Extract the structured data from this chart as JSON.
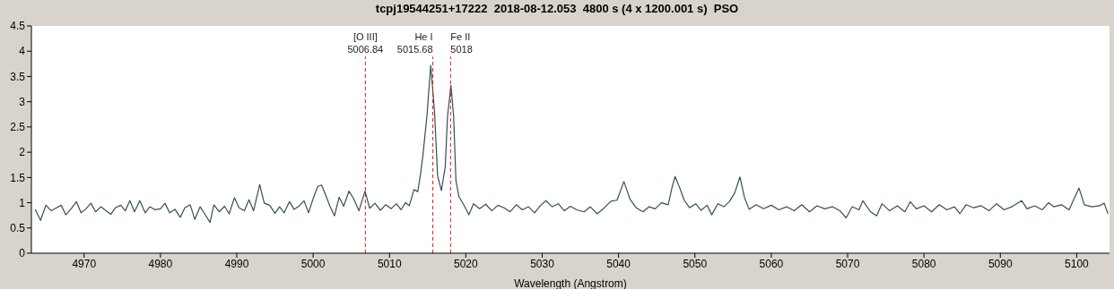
{
  "chart_data": {
    "type": "line",
    "title": "tcpj19544251+17222  2018-08-12.053  4800 s (4 x 1200.001 s)  PSO",
    "xlabel": "Wavelength (Angstrom)",
    "xlim": [
      4963.1,
      5104.3
    ],
    "xticks": [
      4970,
      4980,
      4990,
      5000,
      5010,
      5020,
      5030,
      5040,
      5050,
      5060,
      5070,
      5080,
      5090,
      5100
    ],
    "ylim": [
      0,
      4.5
    ],
    "yticks": [
      0,
      0.5,
      1,
      1.5,
      2,
      2.5,
      3,
      3.5,
      4,
      4.5
    ],
    "grid": false,
    "legend": false,
    "marker": "none",
    "line_style": "solid",
    "ref_lines": [
      {
        "axis": "x",
        "value": 5006.84,
        "label": "[O III]\n5006.84",
        "color": "#e0191c",
        "line_style": "dashed"
      },
      {
        "axis": "x",
        "value": 5015.68,
        "label": "He I\n5015.68",
        "color": "#e0191c",
        "line_style": "dashed"
      },
      {
        "axis": "x",
        "value": 5018,
        "label": "Fe II\n5018",
        "color": "#e0191c",
        "line_style": "dashed"
      }
    ],
    "series": [
      {
        "color": "#34504f",
        "x": [
          4963.6,
          4964.3,
          4965.0,
          4965.7,
          4966.4,
          4967.0,
          4967.6,
          4968.3,
          4969.0,
          4969.6,
          4970.2,
          4970.9,
          4971.5,
          4972.2,
          4972.8,
          4973.5,
          4974.1,
          4974.8,
          4975.4,
          4976.0,
          4976.6,
          4977.3,
          4978.0,
          4978.6,
          4979.3,
          4980.0,
          4980.6,
          4981.2,
          4981.9,
          4982.6,
          4983.2,
          4983.9,
          4984.5,
          4985.2,
          4985.8,
          4986.5,
          4987.0,
          4987.7,
          4988.4,
          4989.0,
          4989.7,
          4990.3,
          4991.0,
          4991.6,
          4992.2,
          4993.0,
          4993.6,
          4994.3,
          4995.0,
          4995.6,
          4996.2,
          4996.9,
          4997.5,
          4998.2,
          4998.8,
          4999.4,
          5000.0,
          5000.6,
          5001.1,
          5001.6,
          5002.2,
          5002.8,
          5003.4,
          5004.0,
          5004.7,
          5005.3,
          5006.0,
          5006.8,
          5007.4,
          5008.1,
          5008.8,
          5009.5,
          5010.2,
          5010.9,
          5011.5,
          5012.1,
          5012.6,
          5013.2,
          5013.7,
          5014.1,
          5014.4,
          5014.9,
          5015.4,
          5015.9,
          5016.3,
          5016.8,
          5017.3,
          5017.6,
          5018.05,
          5018.4,
          5018.7,
          5019.1,
          5019.8,
          5020.4,
          5021.0,
          5021.8,
          5022.6,
          5023.4,
          5024.2,
          5025.0,
          5025.8,
          5026.6,
          5027.4,
          5028.2,
          5029.0,
          5029.8,
          5030.5,
          5031.3,
          5032.1,
          5032.9,
          5033.7,
          5034.5,
          5035.5,
          5036.3,
          5037.2,
          5038.0,
          5039.0,
          5039.8,
          5040.7,
          5041.5,
          5042.3,
          5043.2,
          5044.0,
          5044.8,
          5045.6,
          5046.5,
          5047.0,
          5047.4,
          5048.0,
          5048.6,
          5049.3,
          5050.1,
          5050.8,
          5051.6,
          5052.2,
          5053.0,
          5053.8,
          5054.5,
          5055.2,
          5055.9,
          5056.5,
          5057.1,
          5058.0,
          5059.0,
          5060.0,
          5061.0,
          5062.0,
          5063.0,
          5064.0,
          5065.0,
          5066.0,
          5067.0,
          5068.0,
          5069.0,
          5069.8,
          5070.6,
          5071.5,
          5072.0,
          5073.0,
          5073.8,
          5074.5,
          5075.5,
          5076.5,
          5077.5,
          5078.2,
          5079.0,
          5080.0,
          5081.0,
          5082.0,
          5083.0,
          5084.0,
          5084.7,
          5085.5,
          5086.5,
          5087.5,
          5088.5,
          5089.5,
          5090.5,
          5091.5,
          5092.8,
          5093.5,
          5094.5,
          5095.5,
          5096.3,
          5097.0,
          5098.0,
          5099.0,
          5100.3,
          5101.0,
          5102.0,
          5103.0,
          5103.6,
          5104.1
        ],
        "values": [
          0.87,
          0.65,
          0.95,
          0.84,
          0.9,
          0.95,
          0.76,
          0.88,
          1.02,
          0.8,
          0.87,
          0.99,
          0.82,
          0.92,
          0.85,
          0.77,
          0.9,
          0.95,
          0.84,
          1.04,
          0.82,
          1.04,
          0.8,
          0.92,
          0.86,
          0.88,
          0.99,
          0.8,
          0.87,
          0.71,
          0.9,
          0.96,
          0.67,
          0.92,
          0.78,
          0.61,
          0.96,
          0.82,
          0.93,
          0.78,
          1.1,
          0.9,
          0.84,
          1.06,
          0.84,
          1.36,
          0.99,
          0.95,
          0.79,
          0.92,
          0.8,
          1.02,
          0.87,
          0.94,
          1.04,
          0.8,
          1.08,
          1.32,
          1.35,
          1.17,
          0.93,
          0.74,
          1.11,
          0.93,
          1.23,
          1.08,
          0.84,
          1.23,
          0.89,
          0.99,
          0.85,
          0.96,
          0.88,
          0.98,
          0.86,
          1.0,
          0.94,
          1.26,
          1.22,
          1.6,
          1.97,
          2.71,
          3.72,
          2.8,
          1.53,
          1.24,
          1.71,
          2.71,
          3.32,
          2.71,
          1.44,
          1.12,
          0.94,
          0.76,
          0.98,
          0.88,
          0.97,
          0.84,
          0.95,
          0.9,
          0.82,
          0.96,
          0.86,
          0.92,
          0.8,
          0.95,
          1.04,
          0.92,
          0.98,
          0.84,
          0.93,
          0.86,
          0.82,
          0.92,
          0.78,
          0.88,
          1.03,
          1.05,
          1.42,
          1.07,
          0.9,
          0.82,
          0.92,
          0.88,
          1.0,
          0.96,
          1.3,
          1.52,
          1.3,
          1.05,
          0.9,
          0.98,
          0.85,
          0.95,
          0.76,
          0.98,
          0.92,
          1.02,
          1.19,
          1.51,
          1.1,
          0.87,
          0.96,
          0.88,
          0.95,
          0.86,
          0.92,
          0.84,
          0.96,
          0.82,
          0.94,
          0.88,
          0.92,
          0.84,
          0.7,
          0.92,
          0.86,
          1.04,
          0.82,
          0.74,
          0.98,
          0.84,
          0.94,
          0.82,
          1.02,
          0.88,
          0.94,
          0.82,
          0.96,
          0.86,
          0.92,
          0.78,
          0.96,
          0.9,
          0.94,
          0.84,
          0.98,
          0.86,
          0.92,
          1.04,
          0.88,
          0.94,
          0.86,
          1.0,
          0.92,
          0.96,
          0.86,
          1.29,
          0.96,
          0.92,
          0.94,
          0.99,
          0.78
        ]
      }
    ]
  }
}
